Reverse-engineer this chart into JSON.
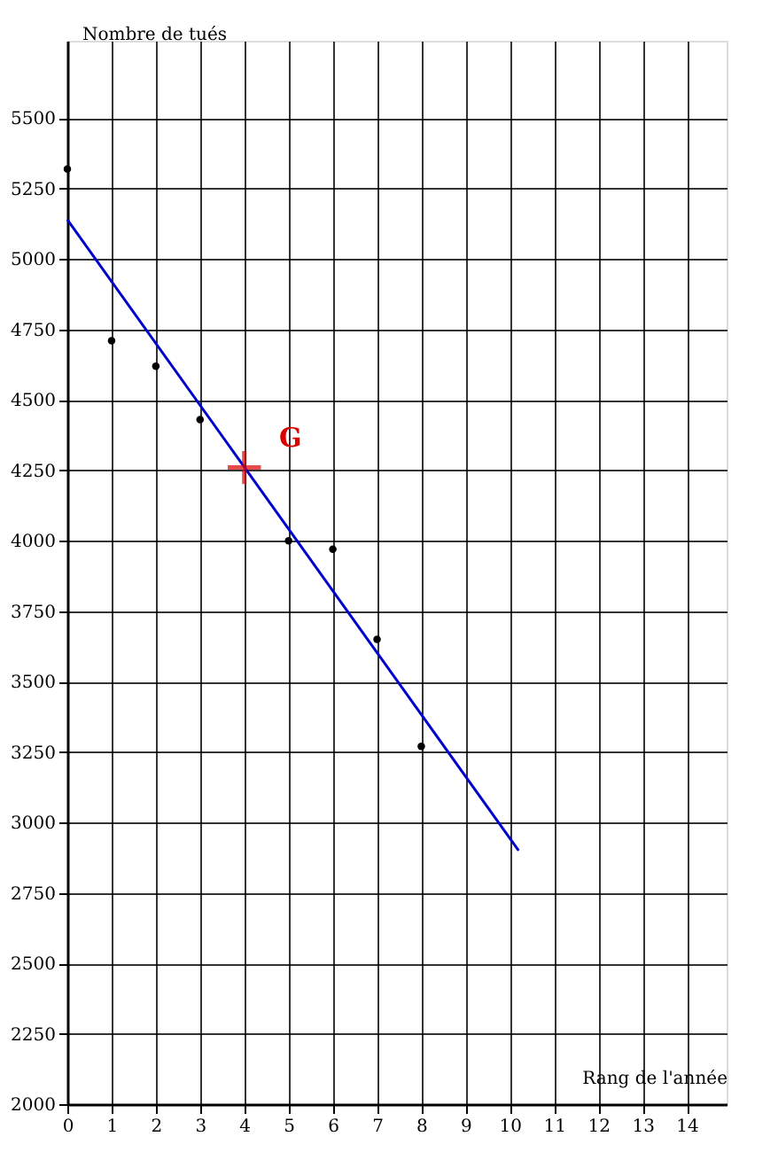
{
  "chart_data": {
    "type": "scatter",
    "xlabel": "Rang de l'année",
    "ylabel": "Nombre de tués",
    "xlim": [
      0,
      14.9
    ],
    "ylim": [
      2000,
      5775
    ],
    "xticks": [
      0,
      1,
      2,
      3,
      4,
      5,
      6,
      7,
      8,
      9,
      10,
      11,
      12,
      13,
      14
    ],
    "yticks": [
      2000,
      2250,
      2500,
      2750,
      3000,
      3250,
      3500,
      3750,
      4000,
      4250,
      4500,
      4750,
      5000,
      5250,
      5500
    ],
    "grid": true,
    "series": [
      {
        "type": "scatter",
        "color": "#000000",
        "marker": "circle",
        "x": [
          0,
          1,
          2,
          3,
          5,
          6,
          7,
          8
        ],
        "values": [
          5320,
          4710,
          4620,
          4430,
          4000,
          3970,
          3650,
          3270
        ]
      },
      {
        "type": "line",
        "color": "#0000cc",
        "marker": "none",
        "line_style": "solid",
        "x": [
          0,
          10.2
        ],
        "values": [
          5140,
          2900
        ]
      },
      {
        "type": "scatter",
        "color": "#dd0000",
        "marker": "cross",
        "x": [
          4
        ],
        "values": [
          4260
        ]
      }
    ],
    "annotations": [
      {
        "text": "G",
        "x": 4,
        "y": 4260
      }
    ]
  }
}
